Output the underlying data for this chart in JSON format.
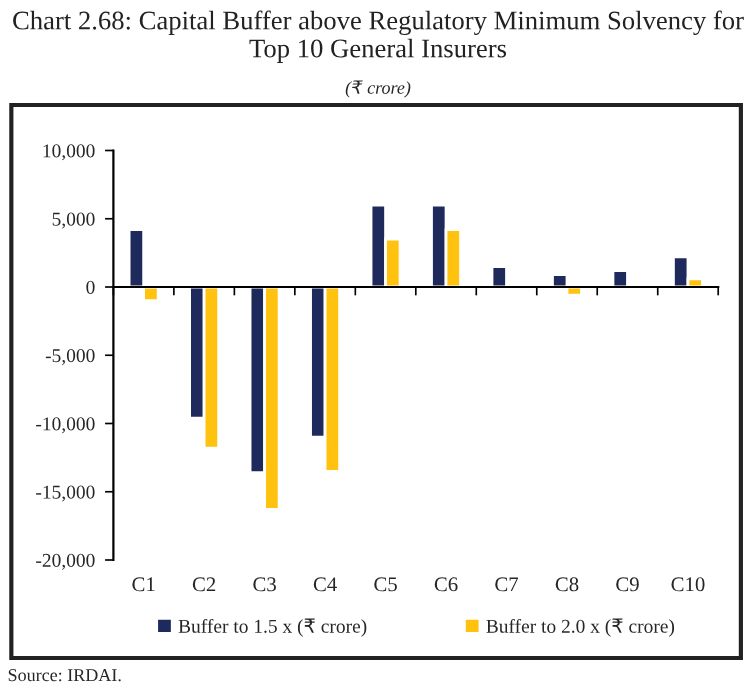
{
  "chart_data": {
    "type": "bar",
    "title": "Chart 2.68: Capital Buffer above Regulatory Minimum Solvency for Top 10 General Insurers",
    "subtitle": "(₹ crore)",
    "categories": [
      "C1",
      "C2",
      "C3",
      "C4",
      "C5",
      "C6",
      "C7",
      "C8",
      "C9",
      "C10"
    ],
    "series": [
      {
        "name": "Buffer to 1.5 x (₹ crore)",
        "color": "#1f2a5c",
        "values": [
          4200,
          -9600,
          -13600,
          -11000,
          6000,
          6000,
          1500,
          900,
          1200,
          2200
        ]
      },
      {
        "name": "Buffer to 2.0 x (₹ crore)",
        "color": "#ffc20e",
        "values": [
          -1000,
          -11800,
          -16300,
          -13500,
          3500,
          4200,
          null,
          -600,
          null,
          600
        ]
      }
    ],
    "ylim": [
      -20000,
      10000
    ],
    "yticks": [
      {
        "value": -20000,
        "label": "-20,000"
      },
      {
        "value": -15000,
        "label": "-15,000"
      },
      {
        "value": -10000,
        "label": "-10,000"
      },
      {
        "value": -5000,
        "label": "-5,000"
      },
      0,
      {
        "value": 5000,
        "label": "5,000"
      },
      {
        "value": 10000,
        "label": "10,000"
      }
    ],
    "legend": "bottom",
    "annotations": [
      "Source: IRDAI."
    ]
  }
}
